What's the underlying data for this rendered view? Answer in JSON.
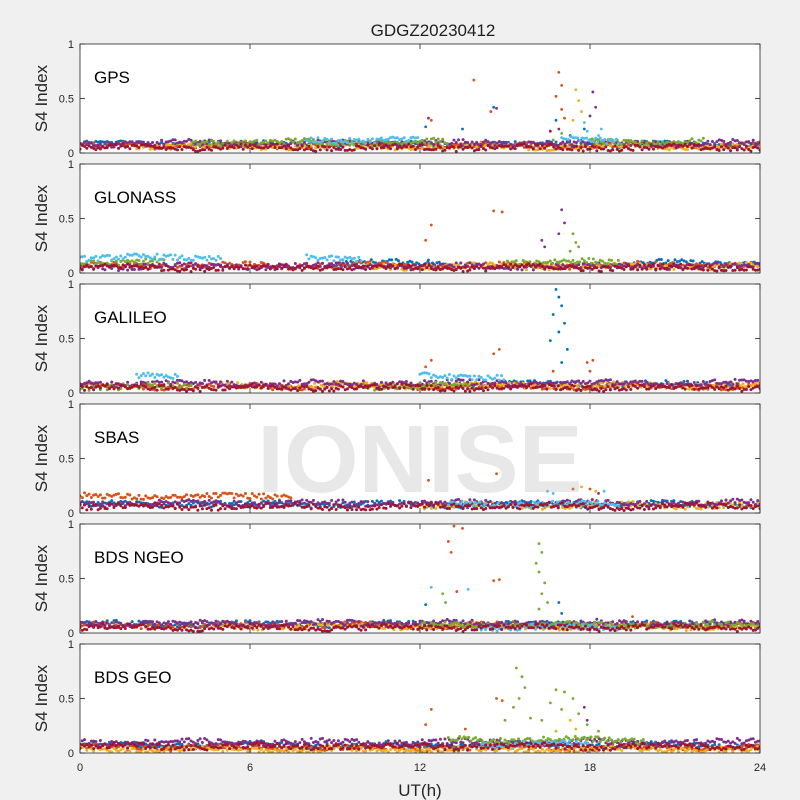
{
  "figure": {
    "title": "GDGZ20230412",
    "xlabel": "UT(h)",
    "watermark": "IONISE"
  },
  "chart_data": [
    {
      "type": "scatter",
      "label": "GPS",
      "ylabel": "S4 Index",
      "xlim": [
        0,
        24
      ],
      "ylim": [
        0,
        1
      ],
      "yticks": [
        0,
        0.5,
        1
      ],
      "series": [
        {
          "color": "#0072bd",
          "baseline": 0.08,
          "segments": [
            [
              0,
              24
            ]
          ],
          "points": [
            [
              12.2,
              0.24
            ],
            [
              13.5,
              0.22
            ],
            [
              14.6,
              0.42
            ],
            [
              16.8,
              0.3
            ],
            [
              17.3,
              0.16
            ],
            [
              17.8,
              0.22
            ]
          ]
        },
        {
          "color": "#d95319",
          "baseline": 0.07,
          "segments": [
            [
              0,
              24
            ]
          ],
          "points": [
            [
              12.4,
              0.3
            ],
            [
              13.9,
              0.67
            ],
            [
              14.5,
              0.38
            ],
            [
              16.9,
              0.74
            ],
            [
              17.0,
              0.62
            ],
            [
              16.8,
              0.52
            ],
            [
              17.0,
              0.4
            ],
            [
              17.1,
              0.32
            ],
            [
              18.0,
              0.12
            ]
          ]
        },
        {
          "color": "#edb120",
          "baseline": 0.06,
          "segments": [
            [
              2,
              24
            ]
          ],
          "points": [
            [
              17.5,
              0.58
            ],
            [
              17.6,
              0.48
            ],
            [
              17.7,
              0.38
            ],
            [
              17.4,
              0.3
            ],
            [
              19.0,
              0.1
            ]
          ]
        },
        {
          "color": "#7e2f8e",
          "baseline": 0.09,
          "segments": [
            [
              0,
              24
            ]
          ],
          "points": [
            [
              12.3,
              0.32
            ],
            [
              14.7,
              0.41
            ],
            [
              16.9,
              0.22
            ],
            [
              18.1,
              0.56
            ],
            [
              18.2,
              0.42
            ],
            [
              18.0,
              0.34
            ]
          ]
        },
        {
          "color": "#77ac30",
          "baseline": 0.1,
          "segments": [
            [
              4,
              13
            ],
            [
              18,
              22
            ]
          ],
          "points": [
            [
              17.0,
              0.18
            ],
            [
              16.7,
              0.12
            ]
          ]
        },
        {
          "color": "#4dbeee",
          "baseline": 0.12,
          "segments": [
            [
              8,
              12
            ],
            [
              17,
              19
            ]
          ],
          "points": [
            [
              17.8,
              0.28
            ],
            [
              17.9,
              0.2
            ],
            [
              18.3,
              0.16
            ],
            [
              18.4,
              0.22
            ]
          ]
        },
        {
          "color": "#a2142f",
          "baseline": 0.05,
          "segments": [
            [
              0,
              24
            ]
          ],
          "points": [
            [
              16.6,
              0.2
            ]
          ]
        }
      ]
    },
    {
      "type": "scatter",
      "label": "GLONASS",
      "ylabel": "S4 Index",
      "xlim": [
        0,
        24
      ],
      "ylim": [
        0,
        1
      ],
      "yticks": [
        0,
        0.5,
        1
      ],
      "series": [
        {
          "color": "#0072bd",
          "baseline": 0.09,
          "segments": [
            [
              9,
              13
            ],
            [
              19,
              24
            ]
          ],
          "points": [
            [
              12.3,
              0.12
            ]
          ]
        },
        {
          "color": "#d95319",
          "baseline": 0.07,
          "segments": [
            [
              0,
              24
            ]
          ],
          "points": [
            [
              12.2,
              0.3
            ],
            [
              12.4,
              0.44
            ],
            [
              14.6,
              0.57
            ],
            [
              14.9,
              0.56
            ]
          ]
        },
        {
          "color": "#edb120",
          "baseline": 0.06,
          "segments": [
            [
              10,
              24
            ]
          ],
          "points": []
        },
        {
          "color": "#7e2f8e",
          "baseline": 0.06,
          "segments": [
            [
              0,
              24
            ]
          ],
          "points": [
            [
              16.3,
              0.3
            ],
            [
              16.4,
              0.24
            ],
            [
              17.0,
              0.58
            ],
            [
              17.1,
              0.46
            ],
            [
              16.9,
              0.36
            ]
          ]
        },
        {
          "color": "#77ac30",
          "baseline": 0.1,
          "segments": [
            [
              0,
              3
            ],
            [
              15,
              19
            ]
          ],
          "points": [
            [
              17.4,
              0.36
            ],
            [
              17.5,
              0.28
            ],
            [
              17.6,
              0.24
            ],
            [
              17.3,
              0.2
            ]
          ]
        },
        {
          "color": "#4dbeee",
          "baseline": 0.14,
          "segments": [
            [
              0,
              5
            ],
            [
              8,
              10
            ]
          ],
          "points": []
        },
        {
          "color": "#a2142f",
          "baseline": 0.05,
          "segments": [
            [
              0,
              24
            ]
          ],
          "points": []
        }
      ]
    },
    {
      "type": "scatter",
      "label": "GALILEO",
      "ylabel": "S4 Index",
      "xlim": [
        0,
        24
      ],
      "ylim": [
        0,
        1
      ],
      "yticks": [
        0,
        0.5,
        1
      ],
      "series": [
        {
          "color": "#0072bd",
          "baseline": 0.08,
          "segments": [
            [
              13,
              23
            ]
          ],
          "points": [
            [
              16.8,
              0.95
            ],
            [
              16.9,
              0.88
            ],
            [
              17.0,
              0.8
            ],
            [
              16.7,
              0.72
            ],
            [
              17.1,
              0.64
            ],
            [
              16.9,
              0.56
            ],
            [
              17.2,
              0.4
            ],
            [
              16.6,
              0.48
            ],
            [
              17.0,
              0.28
            ]
          ]
        },
        {
          "color": "#d95319",
          "baseline": 0.06,
          "segments": [
            [
              0,
              24
            ]
          ],
          "points": [
            [
              12.2,
              0.24
            ],
            [
              12.4,
              0.3
            ],
            [
              14.6,
              0.36
            ],
            [
              14.8,
              0.4
            ],
            [
              16.7,
              0.2
            ],
            [
              17.9,
              0.28
            ],
            [
              18.1,
              0.3
            ],
            [
              18.0,
              0.2
            ]
          ]
        },
        {
          "color": "#edb120",
          "baseline": 0.07,
          "segments": [
            [
              5,
              24
            ]
          ],
          "points": []
        },
        {
          "color": "#7e2f8e",
          "baseline": 0.09,
          "segments": [
            [
              0,
              24
            ]
          ],
          "points": []
        },
        {
          "color": "#77ac30",
          "baseline": 0.06,
          "segments": [
            [
              0,
              4
            ],
            [
              10,
              14
            ]
          ],
          "points": []
        },
        {
          "color": "#4dbeee",
          "baseline": 0.15,
          "segments": [
            [
              2,
              3.5
            ],
            [
              12,
              15
            ]
          ],
          "points": []
        },
        {
          "color": "#a2142f",
          "baseline": 0.05,
          "segments": [
            [
              0,
              24
            ]
          ],
          "points": []
        }
      ]
    },
    {
      "type": "scatter",
      "label": "SBAS",
      "ylabel": "S4 Index",
      "xlim": [
        0,
        24
      ],
      "ylim": [
        0,
        1
      ],
      "yticks": [
        0,
        0.5,
        1
      ],
      "series": [
        {
          "color": "#0072bd",
          "baseline": 0.08,
          "segments": [
            [
              0,
              24
            ]
          ],
          "points": []
        },
        {
          "color": "#d95319",
          "baseline": 0.15,
          "segments": [
            [
              0,
              7.5
            ]
          ],
          "points": [
            [
              12.3,
              0.3
            ],
            [
              14.7,
              0.36
            ],
            [
              17.4,
              0.22
            ],
            [
              18.0,
              0.22
            ]
          ]
        },
        {
          "color": "#edb120",
          "baseline": 0.07,
          "segments": [
            [
              12,
              24
            ]
          ],
          "points": [
            [
              17.7,
              0.24
            ],
            [
              18.2,
              0.2
            ]
          ]
        },
        {
          "color": "#7e2f8e",
          "baseline": 0.09,
          "segments": [
            [
              0,
              24
            ]
          ],
          "points": [
            [
              18.3,
              0.18
            ]
          ]
        },
        {
          "color": "#4dbeee",
          "baseline": 0.08,
          "segments": [
            [
              13,
              19
            ]
          ],
          "points": [
            [
              16.5,
              0.2
            ],
            [
              16.7,
              0.18
            ],
            [
              18.5,
              0.2
            ]
          ]
        },
        {
          "color": "#a2142f",
          "baseline": 0.06,
          "segments": [
            [
              0,
              24
            ]
          ],
          "points": []
        }
      ]
    },
    {
      "type": "scatter",
      "label": "BDS NGEO",
      "ylabel": "S4 Index",
      "xlim": [
        0,
        24
      ],
      "ylim": [
        0,
        1
      ],
      "yticks": [
        0,
        0.5,
        1
      ],
      "series": [
        {
          "color": "#0072bd",
          "baseline": 0.08,
          "segments": [
            [
              0,
              24
            ]
          ],
          "points": [
            [
              12.2,
              0.26
            ],
            [
              16.9,
              0.28
            ],
            [
              17.0,
              0.18
            ]
          ]
        },
        {
          "color": "#d95319",
          "baseline": 0.07,
          "segments": [
            [
              0,
              24
            ]
          ],
          "points": [
            [
              13.2,
              0.98
            ],
            [
              13.5,
              0.96
            ],
            [
              13.0,
              0.84
            ],
            [
              13.1,
              0.74
            ],
            [
              13.3,
              0.38
            ],
            [
              14.6,
              0.48
            ],
            [
              14.8,
              0.49
            ],
            [
              19.5,
              0.15
            ]
          ]
        },
        {
          "color": "#edb120",
          "baseline": 0.06,
          "segments": [
            [
              5,
              24
            ]
          ],
          "points": []
        },
        {
          "color": "#7e2f8e",
          "baseline": 0.09,
          "segments": [
            [
              0,
              24
            ]
          ],
          "points": []
        },
        {
          "color": "#77ac30",
          "baseline": 0.07,
          "segments": [
            [
              12,
              24
            ]
          ],
          "points": [
            [
              12.9,
              0.28
            ],
            [
              12.8,
              0.36
            ],
            [
              16.2,
              0.82
            ],
            [
              16.3,
              0.74
            ],
            [
              16.1,
              0.64
            ],
            [
              16.2,
              0.56
            ],
            [
              16.4,
              0.46
            ],
            [
              16.3,
              0.36
            ],
            [
              16.5,
              0.28
            ],
            [
              16.2,
              0.22
            ]
          ]
        },
        {
          "color": "#4dbeee",
          "baseline": 0.05,
          "segments": [
            [
              14,
              19
            ]
          ],
          "points": [
            [
              12.4,
              0.42
            ],
            [
              13.7,
              0.4
            ]
          ]
        },
        {
          "color": "#a2142f",
          "baseline": 0.05,
          "segments": [
            [
              0,
              24
            ]
          ],
          "points": []
        }
      ]
    },
    {
      "type": "scatter",
      "label": "BDS GEO",
      "ylabel": "S4 Index",
      "xlim": [
        0,
        24
      ],
      "ylim": [
        0,
        1
      ],
      "yticks": [
        0,
        0.5,
        1
      ],
      "series": [
        {
          "color": "#0072bd",
          "baseline": 0.07,
          "segments": [
            [
              0,
              24
            ]
          ],
          "points": []
        },
        {
          "color": "#d95319",
          "baseline": 0.05,
          "segments": [
            [
              0,
              24
            ]
          ],
          "points": [
            [
              12.2,
              0.26
            ],
            [
              12.4,
              0.4
            ],
            [
              13.6,
              0.22
            ],
            [
              14.7,
              0.5
            ],
            [
              14.9,
              0.48
            ]
          ]
        },
        {
          "color": "#edb120",
          "baseline": 0.03,
          "segments": [
            [
              0,
              24
            ]
          ],
          "points": [
            [
              17.3,
              0.3
            ],
            [
              17.5,
              0.22
            ],
            [
              16.8,
              0.2
            ]
          ]
        },
        {
          "color": "#7e2f8e",
          "baseline": 0.1,
          "segments": [
            [
              0,
              24
            ]
          ],
          "points": [
            [
              17.8,
              0.42
            ],
            [
              17.9,
              0.3
            ]
          ]
        },
        {
          "color": "#77ac30",
          "baseline": 0.12,
          "segments": [
            [
              13,
              20
            ]
          ],
          "points": [
            [
              15.4,
              0.78
            ],
            [
              15.6,
              0.7
            ],
            [
              15.7,
              0.6
            ],
            [
              15.5,
              0.5
            ],
            [
              15.3,
              0.42
            ],
            [
              15.9,
              0.32
            ],
            [
              15.0,
              0.3
            ],
            [
              16.8,
              0.58
            ],
            [
              17.1,
              0.56
            ],
            [
              17.4,
              0.5
            ],
            [
              16.6,
              0.46
            ],
            [
              17.0,
              0.4
            ],
            [
              17.6,
              0.36
            ],
            [
              16.3,
              0.3
            ],
            [
              17.9,
              0.26
            ],
            [
              18.3,
              0.2
            ]
          ]
        },
        {
          "color": "#4dbeee",
          "baseline": 0.08,
          "segments": [
            [
              14,
              18
            ]
          ],
          "points": []
        },
        {
          "color": "#a2142f",
          "baseline": 0.06,
          "segments": [
            [
              0,
              24
            ]
          ],
          "points": []
        }
      ]
    }
  ]
}
